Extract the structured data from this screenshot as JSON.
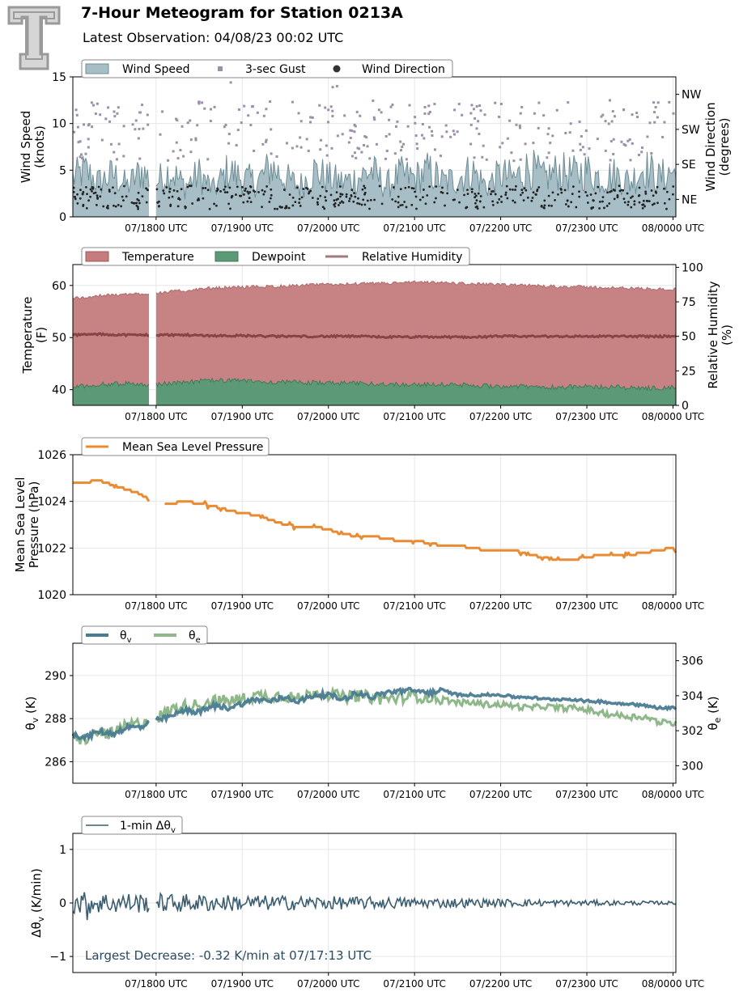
{
  "header": {
    "title": "7-Hour Meteogram for Station 0213A",
    "subtitle": "Latest Observation: 04/08/23 00:02 UTC"
  },
  "x_axis": {
    "ticks": [
      {
        "t": 60,
        "label": "07/1800 UTC"
      },
      {
        "t": 120,
        "label": "07/1900 UTC"
      },
      {
        "t": 180,
        "label": "07/2000 UTC"
      },
      {
        "t": 240,
        "label": "07/2100 UTC"
      },
      {
        "t": 300,
        "label": "07/2200 UTC"
      },
      {
        "t": 360,
        "label": "07/2300 UTC"
      },
      {
        "t": 420,
        "label": "08/0000 UTC"
      }
    ],
    "range_minutes": [
      2,
      422
    ],
    "gap_minutes": [
      55,
      60
    ]
  },
  "colors": {
    "wind_fill": "#a7bec6",
    "wind_line": "#6e8d96",
    "gust": "#9c8fa8",
    "direction": "#222222",
    "temperature": "#c47c7d",
    "dewpoint": "#5c9a77",
    "rh": "#7a3a3c",
    "mslp": "#e88b33",
    "theta_v": "#4a7b94",
    "theta_e": "#8fb88a",
    "dtheta": "#3b5d70",
    "annotation": "#2a4a60",
    "grid": "#e6e6e6"
  },
  "chart_data": [
    {
      "type": "area",
      "title": "",
      "ylabel": "Wind Speed\n(knots)",
      "ylim": [
        0,
        15
      ],
      "yticks": [
        "0",
        "5",
        "10",
        "15"
      ],
      "y2label": "Wind Direction\n(degrees)",
      "y2lim": [
        0,
        360
      ],
      "y2ticks": [
        {
          "v": 45,
          "label": "NE"
        },
        {
          "v": 135,
          "label": "SE"
        },
        {
          "v": 225,
          "label": "SW"
        },
        {
          "v": 315,
          "label": "NW"
        }
      ],
      "legend": "top-left",
      "series": [
        {
          "name": "Wind Speed",
          "kind": "area",
          "x": [
            2,
            10,
            20,
            30,
            40,
            50,
            55,
            60,
            70,
            80,
            90,
            100,
            110,
            120,
            130,
            140,
            150,
            160,
            170,
            180,
            190,
            200,
            210,
            220,
            230,
            240,
            250,
            260,
            270,
            280,
            290,
            300,
            310,
            320,
            330,
            340,
            350,
            360,
            370,
            380,
            390,
            400,
            410,
            420,
            422
          ],
          "y": [
            5,
            6,
            4.5,
            5.5,
            4,
            6,
            5,
            4.5,
            6,
            4,
            5.5,
            3.5,
            6,
            5,
            4.5,
            6.5,
            5,
            4,
            6,
            5,
            4.5,
            5,
            6,
            4,
            5.5,
            5,
            6,
            4.5,
            5,
            6,
            4,
            5.5,
            5,
            6.5,
            5,
            6,
            5.5,
            6,
            5,
            5.5,
            4.5,
            6.5,
            5,
            6,
            5
          ]
        },
        {
          "name": "3-sec Gust",
          "kind": "scatter",
          "density": 300,
          "range": [
            6,
            12.5
          ],
          "outliers": [
            [
              112,
              14.4
            ],
            [
              155,
              12.3
            ],
            [
              183,
              13.9
            ],
            [
              186,
              14.0
            ]
          ]
        },
        {
          "name": "Wind Direction",
          "kind": "scatter",
          "density": 420,
          "range_degrees": [
            20,
            80
          ]
        }
      ]
    },
    {
      "type": "area",
      "title": "",
      "ylabel": "Temperature\n(F)",
      "ylim": [
        37,
        64
      ],
      "yticks": [
        "40",
        "50",
        "60"
      ],
      "y2label": "Relative Humidity\n(%)",
      "y2lim": [
        0,
        102
      ],
      "y2ticks": [
        "0",
        "25",
        "50",
        "75",
        "100"
      ],
      "legend": "top-left",
      "series": [
        {
          "name": "Temperature",
          "x": [
            2,
            20,
            40,
            55,
            60,
            80,
            100,
            120,
            140,
            160,
            180,
            200,
            220,
            240,
            260,
            280,
            300,
            320,
            340,
            360,
            380,
            400,
            422
          ],
          "y": [
            57.5,
            58,
            58.3,
            58.5,
            58.6,
            59,
            59.5,
            59.7,
            59.8,
            60,
            60.2,
            60.3,
            60.4,
            60.6,
            60.5,
            60.3,
            60.1,
            60,
            59.8,
            59.7,
            59.5,
            59.4,
            59.2
          ]
        },
        {
          "name": "Dewpoint",
          "x": [
            2,
            20,
            40,
            55,
            60,
            80,
            100,
            120,
            140,
            160,
            180,
            200,
            220,
            240,
            260,
            280,
            300,
            320,
            340,
            360,
            380,
            400,
            422
          ],
          "y": [
            40.5,
            41,
            41.2,
            41,
            41,
            41.5,
            41.8,
            41.7,
            41.5,
            41.4,
            41.3,
            41.2,
            41.1,
            41,
            41,
            40.8,
            40.7,
            40.6,
            40.5,
            40.6,
            40.5,
            40.3,
            40.4
          ]
        },
        {
          "name": "Relative Humidity",
          "axis": "right",
          "x": [
            2,
            20,
            40,
            55,
            60,
            80,
            100,
            120,
            140,
            160,
            180,
            200,
            220,
            240,
            260,
            280,
            300,
            320,
            340,
            360,
            380,
            400,
            422
          ],
          "y": [
            51,
            51.5,
            51,
            51,
            51,
            51,
            50.5,
            50.5,
            50,
            50,
            50,
            50,
            49.5,
            49.5,
            49.5,
            49.5,
            50,
            50,
            50,
            50,
            50,
            50,
            50
          ]
        }
      ]
    },
    {
      "type": "line",
      "title": "",
      "ylabel": "Mean Sea Level\nPressure (hPa)",
      "ylim": [
        1020,
        1026
      ],
      "yticks": [
        "1020",
        "1022",
        "1024",
        "1026"
      ],
      "legend": "top-left",
      "series": [
        {
          "name": "Mean Sea Level Pressure",
          "x": [
            2,
            10,
            20,
            30,
            40,
            50,
            55,
            60,
            65,
            70,
            80,
            90,
            100,
            110,
            120,
            130,
            140,
            150,
            160,
            170,
            180,
            190,
            200,
            210,
            220,
            230,
            240,
            250,
            260,
            270,
            280,
            290,
            300,
            310,
            320,
            330,
            340,
            350,
            360,
            370,
            380,
            390,
            400,
            410,
            420,
            422
          ],
          "y": [
            1024.8,
            1024.8,
            1024.9,
            1024.7,
            1024.5,
            1024.3,
            1024.0,
            null,
            1023.9,
            1023.9,
            1024.0,
            1023.9,
            1023.8,
            1023.6,
            1023.5,
            1023.4,
            1023.2,
            1023.0,
            1022.9,
            1022.9,
            1022.8,
            1022.6,
            1022.5,
            1022.5,
            1022.4,
            1022.3,
            1022.3,
            1022.2,
            1022.1,
            1022.1,
            1022.0,
            1021.9,
            1021.9,
            1021.9,
            1021.7,
            1021.6,
            1021.5,
            1021.5,
            1021.6,
            1021.7,
            1021.7,
            1021.7,
            1021.8,
            1021.9,
            1022.0,
            1021.8
          ]
        }
      ]
    },
    {
      "type": "line",
      "title": "",
      "ylabel": "θv (K)",
      "ylim": [
        285,
        291.5
      ],
      "yticks": [
        "286",
        "288",
        "290"
      ],
      "y2label": "θe (K)",
      "y2lim": [
        299,
        307
      ],
      "y2ticks": [
        "300",
        "302",
        "304",
        "306"
      ],
      "legend": "top-left",
      "series": [
        {
          "name": "θv",
          "x": [
            2,
            10,
            20,
            30,
            40,
            50,
            55,
            60,
            70,
            80,
            90,
            100,
            110,
            120,
            130,
            140,
            150,
            160,
            170,
            180,
            190,
            200,
            210,
            220,
            230,
            240,
            250,
            260,
            270,
            280,
            290,
            300,
            310,
            320,
            330,
            340,
            350,
            360,
            370,
            380,
            390,
            400,
            410,
            420,
            422
          ],
          "y": [
            287.3,
            287.1,
            287.4,
            287.3,
            287.6,
            287.6,
            287.8,
            287.9,
            288.1,
            288.4,
            288.3,
            288.6,
            288.5,
            288.7,
            288.9,
            288.8,
            289.0,
            288.8,
            289.1,
            289.1,
            288.9,
            289.2,
            289.0,
            289.2,
            289.3,
            289.3,
            289.2,
            289.3,
            289.1,
            289.1,
            289.1,
            289.1,
            289.0,
            289.0,
            288.9,
            288.9,
            288.9,
            288.8,
            288.8,
            288.7,
            288.7,
            288.6,
            288.5,
            288.5,
            288.5
          ]
        },
        {
          "name": "θe",
          "axis": "right",
          "x": [
            2,
            10,
            20,
            30,
            40,
            50,
            55,
            60,
            70,
            80,
            90,
            100,
            110,
            120,
            130,
            140,
            150,
            160,
            170,
            180,
            190,
            200,
            210,
            220,
            230,
            240,
            250,
            260,
            270,
            280,
            290,
            300,
            310,
            320,
            330,
            340,
            350,
            360,
            370,
            380,
            390,
            400,
            410,
            420,
            422
          ],
          "y": [
            301.6,
            301.5,
            301.9,
            301.8,
            302.3,
            302.4,
            302.7,
            302.7,
            303.2,
            303.4,
            303.5,
            303.7,
            303.7,
            303.8,
            304.0,
            304.0,
            304.0,
            303.8,
            304.2,
            304.1,
            303.9,
            304.0,
            303.9,
            303.8,
            303.9,
            304.0,
            303.9,
            303.8,
            303.6,
            303.6,
            303.5,
            303.5,
            303.4,
            303.3,
            303.4,
            303.3,
            303.3,
            303.2,
            303.0,
            302.9,
            302.8,
            302.8,
            302.5,
            302.4,
            302.5
          ]
        }
      ]
    },
    {
      "type": "line",
      "title": "",
      "ylabel": "Δθv (K/min)",
      "ylim": [
        -1.3,
        1.3
      ],
      "yticks": [
        "−1",
        "0",
        "1"
      ],
      "legend": "top-left",
      "annotation": "Largest Decrease: -0.32 K/min at 07/17:13 UTC",
      "series": [
        {
          "name": "1-min Δθv",
          "kind": "noise",
          "amplitude_start": 0.22,
          "amplitude_end": 0.03,
          "min": -0.32
        }
      ]
    }
  ]
}
